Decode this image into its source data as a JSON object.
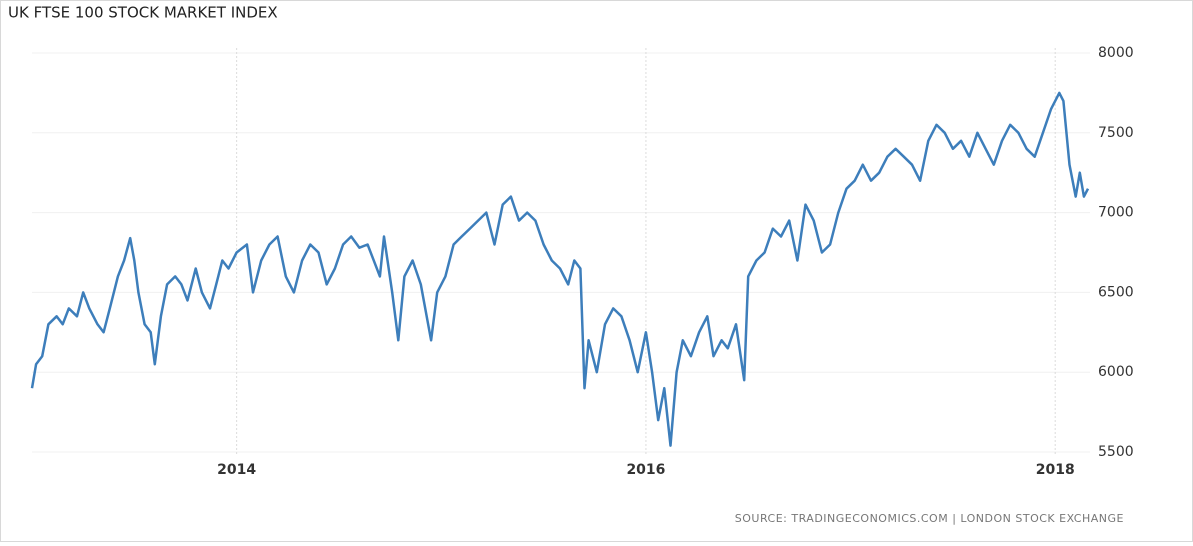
{
  "chart_data": {
    "type": "line",
    "title": "UK FTSE 100 STOCK MARKET INDEX",
    "source": "SOURCE: TRADINGECONOMICS.COM | LONDON STOCK EXCHANGE",
    "x": [
      2013.0,
      2013.02,
      2013.05,
      2013.08,
      2013.12,
      2013.15,
      2013.18,
      2013.22,
      2013.25,
      2013.28,
      2013.32,
      2013.35,
      2013.38,
      2013.42,
      2013.45,
      2013.48,
      2013.5,
      2013.52,
      2013.55,
      2013.58,
      2013.6,
      2013.63,
      2013.66,
      2013.7,
      2013.73,
      2013.76,
      2013.8,
      2013.83,
      2013.87,
      2013.9,
      2013.93,
      2013.96,
      2014.0,
      2014.05,
      2014.08,
      2014.12,
      2014.16,
      2014.2,
      2014.24,
      2014.28,
      2014.32,
      2014.36,
      2014.4,
      2014.44,
      2014.48,
      2014.52,
      2014.56,
      2014.6,
      2014.64,
      2014.7,
      2014.72,
      2014.76,
      2014.79,
      2014.82,
      2014.86,
      2014.9,
      2014.95,
      2014.98,
      2015.02,
      2015.06,
      2015.1,
      2015.14,
      2015.18,
      2015.22,
      2015.26,
      2015.3,
      2015.34,
      2015.38,
      2015.42,
      2015.46,
      2015.5,
      2015.54,
      2015.58,
      2015.62,
      2015.65,
      2015.68,
      2015.7,
      2015.72,
      2015.76,
      2015.8,
      2015.84,
      2015.88,
      2015.92,
      2015.96,
      2016.0,
      2016.03,
      2016.06,
      2016.09,
      2016.12,
      2016.15,
      2016.18,
      2016.22,
      2016.26,
      2016.3,
      2016.33,
      2016.37,
      2016.4,
      2016.44,
      2016.48,
      2016.5,
      2016.54,
      2016.58,
      2016.62,
      2016.66,
      2016.7,
      2016.74,
      2016.78,
      2016.82,
      2016.86,
      2016.9,
      2016.94,
      2016.98,
      2017.02,
      2017.06,
      2017.1,
      2017.14,
      2017.18,
      2017.22,
      2017.26,
      2017.3,
      2017.34,
      2017.38,
      2017.42,
      2017.46,
      2017.5,
      2017.54,
      2017.58,
      2017.62,
      2017.66,
      2017.7,
      2017.74,
      2017.78,
      2017.82,
      2017.86,
      2017.9,
      2017.94,
      2017.98,
      2018.02,
      2018.04,
      2018.07,
      2018.1,
      2018.12,
      2018.14,
      2018.16
    ],
    "series": [
      {
        "color": "#3d7ebb",
        "values": [
          5900,
          6050,
          6100,
          6300,
          6350,
          6300,
          6400,
          6350,
          6500,
          6400,
          6300,
          6250,
          6400,
          6600,
          6700,
          6840,
          6700,
          6500,
          6300,
          6250,
          6050,
          6350,
          6550,
          6600,
          6550,
          6450,
          6650,
          6500,
          6400,
          6550,
          6700,
          6650,
          6750,
          6800,
          6500,
          6700,
          6800,
          6850,
          6600,
          6500,
          6700,
          6800,
          6750,
          6550,
          6650,
          6800,
          6850,
          6780,
          6800,
          6600,
          6850,
          6500,
          6200,
          6600,
          6700,
          6550,
          6200,
          6500,
          6600,
          6800,
          6850,
          6900,
          6950,
          7000,
          6800,
          7050,
          7100,
          6950,
          7000,
          6950,
          6800,
          6700,
          6650,
          6550,
          6700,
          6650,
          5900,
          6200,
          6000,
          6300,
          6400,
          6350,
          6200,
          6000,
          6250,
          6000,
          5700,
          5900,
          5540,
          6000,
          6200,
          6100,
          6250,
          6350,
          6100,
          6200,
          6150,
          6300,
          5950,
          6600,
          6700,
          6750,
          6900,
          6850,
          6950,
          6700,
          7050,
          6950,
          6750,
          6800,
          7000,
          7150,
          7200,
          7300,
          7200,
          7250,
          7350,
          7400,
          7350,
          7300,
          7200,
          7450,
          7550,
          7500,
          7400,
          7450,
          7350,
          7500,
          7400,
          7300,
          7450,
          7550,
          7500,
          7400,
          7350,
          7500,
          7650,
          7750,
          7700,
          7300,
          7100,
          7250,
          7100,
          7150
        ]
      }
    ],
    "xlim": [
      2013.0,
      2018.17
    ],
    "xticks": [
      2014,
      2016,
      2018
    ],
    "ylim": [
      5500,
      8000
    ],
    "yticks": [
      5500,
      6000,
      6500,
      7000,
      7500,
      8000
    ],
    "grid": true
  }
}
